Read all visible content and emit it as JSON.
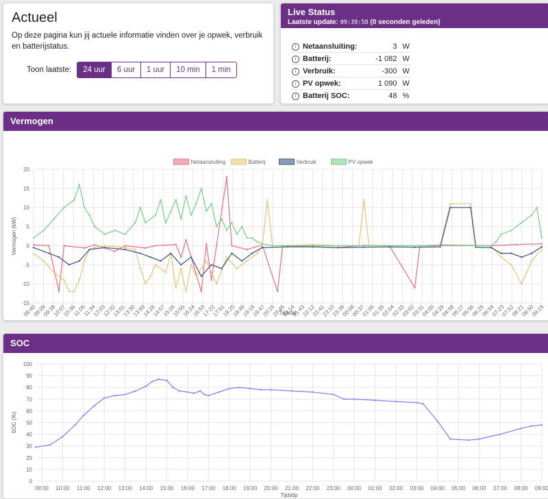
{
  "actueel": {
    "title": "Actueel",
    "description": "Op deze pagina kun jij actuele informatie vinden over je opwek, verbruik en batterijstatus.",
    "range_label": "Toon laatste:",
    "ranges": [
      "24 uur",
      "6 uur",
      "1 uur",
      "10 min",
      "1 min"
    ],
    "active_range": "24 uur"
  },
  "live": {
    "title": "Live Status",
    "update_label": "Laatste update:",
    "update_time": "09:39:58",
    "update_ago": "(0 seconden geleden)",
    "rows": [
      {
        "label": "Netaansluiting:",
        "value": "3",
        "unit": "W"
      },
      {
        "label": "Batterij:",
        "value": "-1 082",
        "unit": "W"
      },
      {
        "label": "Verbruik:",
        "value": "-300",
        "unit": "W"
      },
      {
        "label": "PV opwek:",
        "value": "1 090",
        "unit": "W"
      },
      {
        "label": "Batterij SOC:",
        "value": "48",
        "unit": "%"
      }
    ]
  },
  "vermogen_chart": {
    "header": "Vermogen",
    "chart_data": {
      "type": "line",
      "ylabel": "Vermogen (kW)",
      "xlabel": "Tijdstip",
      "ylim": [
        -15,
        20
      ],
      "yticks": [
        20,
        15,
        10,
        5,
        0,
        -5,
        -10,
        -15
      ],
      "x_ticks": [
        "08:40",
        "09:09",
        "09:38",
        "10:07",
        "10:36",
        "11:05",
        "11:34",
        "12:03",
        "12:32",
        "13:01",
        "13:30",
        "13:59",
        "14:28",
        "14:57",
        "15:26",
        "15:55",
        "16:24",
        "16:53",
        "17:22",
        "17:51",
        "18:20",
        "18:49",
        "19:18",
        "19:47",
        "20:16",
        "20:45",
        "21:14",
        "21:43",
        "22:12",
        "22:41",
        "23:10",
        "23:39",
        "00:08",
        "00:37",
        "01:06",
        "01:35",
        "02:04",
        "02:33",
        "03:02",
        "03:31",
        "04:00",
        "04:29",
        "04:58",
        "05:27",
        "05:56",
        "06:25",
        "06:54",
        "07:23",
        "07:52",
        "08:21",
        "08:50",
        "09:19"
      ],
      "grid": true,
      "legend_position": "top",
      "series": [
        {
          "name": "Netaansluiting",
          "color": "#e8768a",
          "points": [
            [
              0,
              0.2
            ],
            [
              3,
              0
            ],
            [
              5,
              -12
            ],
            [
              6,
              0
            ],
            [
              10,
              -0.6
            ],
            [
              12,
              0.2
            ],
            [
              16,
              -1.5
            ],
            [
              18,
              0
            ],
            [
              22,
              -0.6
            ],
            [
              24,
              0
            ],
            [
              28,
              0.3
            ],
            [
              29,
              -3
            ],
            [
              30,
              1.5
            ],
            [
              33,
              -12
            ],
            [
              34,
              0.5
            ],
            [
              35,
              -9
            ],
            [
              36,
              0
            ],
            [
              38,
              18
            ],
            [
              39,
              0
            ],
            [
              42,
              -1
            ],
            [
              45,
              0.2
            ],
            [
              48,
              -12
            ],
            [
              49,
              0
            ],
            [
              60,
              -0.5
            ],
            [
              65,
              0.1
            ],
            [
              70,
              0
            ],
            [
              75,
              -11
            ],
            [
              76,
              0
            ],
            [
              80,
              0.2
            ],
            [
              90,
              0
            ],
            [
              95,
              0.3
            ],
            [
              100,
              0.5
            ]
          ]
        },
        {
          "name": "Batterij",
          "color": "#e7c77e",
          "points": [
            [
              0,
              -2
            ],
            [
              2,
              -4
            ],
            [
              4,
              -7
            ],
            [
              6,
              -9
            ],
            [
              7,
              -12
            ],
            [
              8,
              -12
            ],
            [
              9,
              -9
            ],
            [
              10,
              -4
            ],
            [
              11,
              -1
            ],
            [
              12,
              -0.5
            ],
            [
              14,
              0
            ],
            [
              18,
              -0.5
            ],
            [
              20,
              -1
            ],
            [
              21,
              -6
            ],
            [
              22,
              -10
            ],
            [
              23,
              -8
            ],
            [
              24,
              -5
            ],
            [
              26,
              -7
            ],
            [
              27,
              -2
            ],
            [
              28,
              -11
            ],
            [
              29,
              -6
            ],
            [
              30,
              -12
            ],
            [
              31,
              -5
            ],
            [
              32,
              -8
            ],
            [
              34,
              -4
            ],
            [
              36,
              -10
            ],
            [
              38,
              -3
            ],
            [
              40,
              -6
            ],
            [
              42,
              -4
            ],
            [
              44,
              -2
            ],
            [
              45,
              0
            ],
            [
              46,
              12
            ],
            [
              47,
              0
            ],
            [
              50,
              0
            ],
            [
              55,
              0.3
            ],
            [
              60,
              0
            ],
            [
              64,
              0
            ],
            [
              65,
              12
            ],
            [
              66,
              0
            ],
            [
              70,
              0
            ],
            [
              80,
              0
            ],
            [
              82,
              11
            ],
            [
              86,
              11
            ],
            [
              87,
              0
            ],
            [
              90,
              0
            ],
            [
              92,
              -3
            ],
            [
              94,
              -5
            ],
            [
              96,
              -10
            ],
            [
              97,
              -7
            ],
            [
              98,
              -4
            ],
            [
              100,
              -1
            ]
          ]
        },
        {
          "name": "Verbruik",
          "color": "#3e5a86",
          "points": [
            [
              0,
              -0.5
            ],
            [
              3,
              -2
            ],
            [
              5,
              -3
            ],
            [
              7,
              -5
            ],
            [
              9,
              -4
            ],
            [
              11,
              -1
            ],
            [
              14,
              -0.5
            ],
            [
              18,
              -1
            ],
            [
              21,
              -2
            ],
            [
              23,
              -3
            ],
            [
              25,
              -4
            ],
            [
              27,
              -2
            ],
            [
              29,
              -5
            ],
            [
              31,
              -3
            ],
            [
              33,
              -8
            ],
            [
              35,
              -5
            ],
            [
              37,
              -6
            ],
            [
              39,
              -2
            ],
            [
              41,
              -4
            ],
            [
              43,
              -2
            ],
            [
              45,
              -0.5
            ],
            [
              50,
              -0.3
            ],
            [
              55,
              -0.3
            ],
            [
              60,
              -0.5
            ],
            [
              65,
              -0.4
            ],
            [
              70,
              -0.3
            ],
            [
              75,
              -0.4
            ],
            [
              80,
              -0.3
            ],
            [
              82,
              10
            ],
            [
              86,
              10
            ],
            [
              87,
              -0.4
            ],
            [
              90,
              -0.5
            ],
            [
              92,
              -2
            ],
            [
              94,
              -2
            ],
            [
              96,
              -3
            ],
            [
              98,
              -2
            ],
            [
              100,
              -0.3
            ]
          ]
        },
        {
          "name": "PV opwek",
          "color": "#7ccf8c",
          "points": [
            [
              0,
              2
            ],
            [
              2,
              4
            ],
            [
              4,
              7
            ],
            [
              6,
              10
            ],
            [
              8,
              12
            ],
            [
              9,
              16
            ],
            [
              10,
              10
            ],
            [
              11,
              8
            ],
            [
              12,
              5
            ],
            [
              14,
              3
            ],
            [
              16,
              4
            ],
            [
              18,
              3
            ],
            [
              20,
              6
            ],
            [
              21,
              10
            ],
            [
              22,
              6
            ],
            [
              24,
              8
            ],
            [
              25,
              12
            ],
            [
              26,
              6
            ],
            [
              27,
              9
            ],
            [
              28,
              12
            ],
            [
              29,
              7
            ],
            [
              30,
              13
            ],
            [
              31,
              8
            ],
            [
              32,
              11
            ],
            [
              33,
              15
            ],
            [
              34,
              9
            ],
            [
              35,
              11
            ],
            [
              36,
              5
            ],
            [
              37,
              7
            ],
            [
              38,
              4
            ],
            [
              39,
              6
            ],
            [
              40,
              3
            ],
            [
              41,
              5
            ],
            [
              42,
              2
            ],
            [
              43,
              2
            ],
            [
              44,
              1
            ],
            [
              45,
              0.5
            ],
            [
              47,
              0
            ],
            [
              90,
              0
            ],
            [
              91,
              1
            ],
            [
              92,
              3
            ],
            [
              94,
              4
            ],
            [
              96,
              6
            ],
            [
              98,
              8
            ],
            [
              99,
              10
            ],
            [
              100,
              2
            ]
          ]
        }
      ]
    }
  },
  "soc_chart": {
    "header": "SOC",
    "chart_data": {
      "type": "line",
      "ylabel": "SOC (%)",
      "xlabel": "Tijdstip",
      "ylim": [
        0,
        100
      ],
      "yticks": [
        100,
        90,
        80,
        70,
        60,
        50,
        40,
        30,
        20,
        10,
        0
      ],
      "x_ticks": [
        "09:00",
        "10:00",
        "11:00",
        "12:00",
        "13:00",
        "14:00",
        "15:00",
        "16:00",
        "17:00",
        "18:00",
        "19:00",
        "20:00",
        "21:00",
        "22:00",
        "23:00",
        "00:00",
        "01:00",
        "02:00",
        "03:00",
        "04:00",
        "05:00",
        "06:00",
        "07:00",
        "08:00",
        "09:00"
      ],
      "grid": true,
      "series": [
        {
          "name": "SOC",
          "color": "#8b7ff2",
          "points": [
            [
              -0.3,
              29
            ],
            [
              0.4,
              31
            ],
            [
              1,
              38
            ],
            [
              1.6,
              48
            ],
            [
              2,
              56
            ],
            [
              2.5,
              64
            ],
            [
              3,
              71
            ],
            [
              3.5,
              73
            ],
            [
              4,
              74
            ],
            [
              4.5,
              77
            ],
            [
              5,
              81
            ],
            [
              5.3,
              85
            ],
            [
              5.6,
              87
            ],
            [
              6,
              86
            ],
            [
              6.3,
              80
            ],
            [
              6.6,
              77
            ],
            [
              7,
              76
            ],
            [
              7.3,
              75
            ],
            [
              7.6,
              77
            ],
            [
              7.8,
              74
            ],
            [
              8,
              73
            ],
            [
              8.5,
              76
            ],
            [
              9,
              79
            ],
            [
              9.5,
              80
            ],
            [
              10,
              79
            ],
            [
              10.5,
              78
            ],
            [
              11,
              78
            ],
            [
              12,
              77
            ],
            [
              13,
              76
            ],
            [
              14,
              74
            ],
            [
              14.5,
              70
            ],
            [
              15,
              70
            ],
            [
              16,
              69
            ],
            [
              17,
              68
            ],
            [
              18,
              67
            ],
            [
              18.3,
              66
            ],
            [
              19,
              51
            ],
            [
              19.6,
              36
            ],
            [
              20.5,
              35
            ],
            [
              21,
              36
            ],
            [
              22,
              40
            ],
            [
              23,
              45
            ],
            [
              23.5,
              47
            ],
            [
              24,
              48
            ]
          ]
        }
      ]
    }
  }
}
